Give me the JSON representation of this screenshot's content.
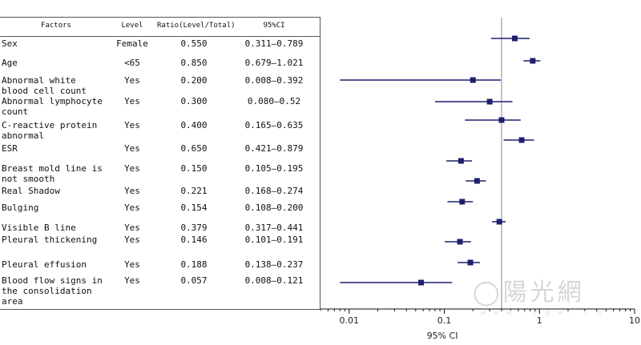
{
  "table": {
    "headers": {
      "factor": "Factors",
      "level": "Level",
      "ratio": "Ratio(Level/Total)",
      "ci": "95%CI"
    }
  },
  "chart_data": {
    "type": "forest",
    "xscale": "log",
    "xlim": [
      0.005,
      10
    ],
    "xticks": [
      0.01,
      0.1,
      1,
      10
    ],
    "xtick_labels": [
      "0.01",
      "0.1",
      "1",
      "10"
    ],
    "xlabel": "95% CI",
    "reference_line": 0.4,
    "rows": [
      {
        "factor": "Sex",
        "level": "Female",
        "ratio": "0.550",
        "ci": "0.311—0.789",
        "estimate": 0.55,
        "low": 0.311,
        "high": 0.789
      },
      {
        "factor": "Age",
        "level": "<65",
        "ratio": "0.850",
        "ci": "0.679—1.021",
        "estimate": 0.85,
        "low": 0.679,
        "high": 1.021
      },
      {
        "factor": "Abnormal white blood cell count",
        "level": "Yes",
        "ratio": "0.200",
        "ci": "0.008—0.392",
        "estimate": 0.2,
        "low": 0.008,
        "high": 0.392
      },
      {
        "factor": "Abnormal lymphocyte count",
        "level": "Yes",
        "ratio": "0.300",
        "ci": "0.080—0.52",
        "estimate": 0.3,
        "low": 0.08,
        "high": 0.52
      },
      {
        "factor": "C-reactive protein abnormal",
        "level": "Yes",
        "ratio": "0.400",
        "ci": "0.165—0.635",
        "estimate": 0.4,
        "low": 0.165,
        "high": 0.635
      },
      {
        "factor": "ESR",
        "level": "Yes",
        "ratio": "0.650",
        "ci": "0.421—0.879",
        "estimate": 0.65,
        "low": 0.421,
        "high": 0.879
      },
      {
        "factor": "Breast mold line is not smooth",
        "level": "Yes",
        "ratio": "0.150",
        "ci": "0.105—0.195",
        "estimate": 0.15,
        "low": 0.105,
        "high": 0.195
      },
      {
        "factor": "Real Shadow",
        "level": "Yes",
        "ratio": "0.221",
        "ci": "0.168—0.274",
        "estimate": 0.221,
        "low": 0.168,
        "high": 0.274
      },
      {
        "factor": "Bulging",
        "level": "Yes",
        "ratio": "0.154",
        "ci": "0.108—0.200",
        "estimate": 0.154,
        "low": 0.108,
        "high": 0.2
      },
      {
        "factor": "Visible B line",
        "level": "Yes",
        "ratio": "0.379",
        "ci": "0.317—0.441",
        "estimate": 0.379,
        "low": 0.317,
        "high": 0.441
      },
      {
        "factor": "Pleural thickening",
        "level": "Yes",
        "ratio": "0.146",
        "ci": "0.101—0.191",
        "estimate": 0.146,
        "low": 0.101,
        "high": 0.191
      },
      {
        "factor": "Pleural effusion",
        "level": "Yes",
        "ratio": "0.188",
        "ci": "0.138—0.237",
        "estimate": 0.188,
        "low": 0.138,
        "high": 0.237
      },
      {
        "factor": "Blood flow signs in the consolidation area",
        "level": "Yes",
        "ratio": "0.057",
        "ci": "0.008—0.121",
        "estimate": 0.057,
        "low": 0.008,
        "high": 0.121
      }
    ],
    "colors": {
      "marker": "#1f1f6e",
      "line": "#1f1f6e",
      "reference": "#888888",
      "axis": "#111111"
    }
  }
}
